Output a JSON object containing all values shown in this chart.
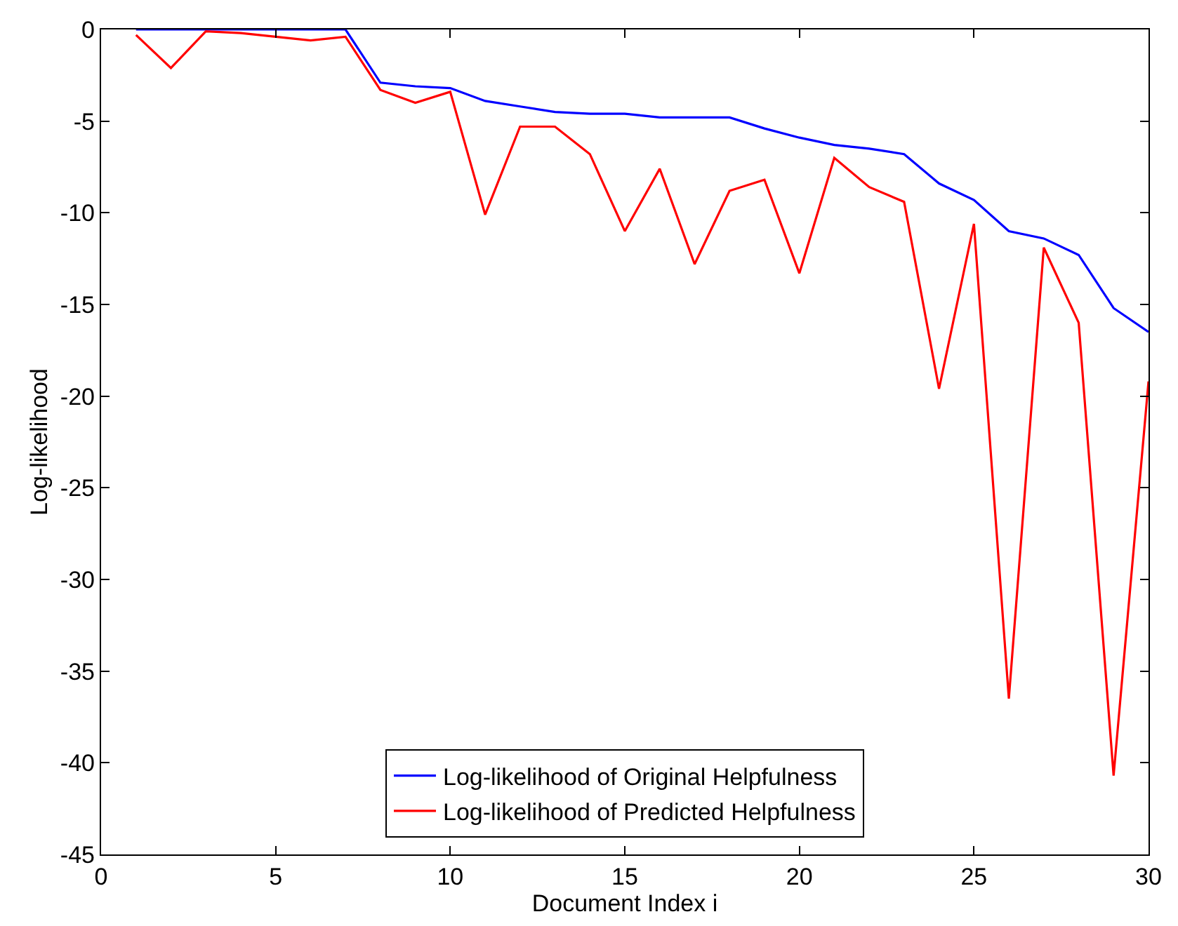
{
  "chart_data": {
    "type": "line",
    "xlabel": "Document Index i",
    "ylabel": "Log-likelihood",
    "x": [
      1,
      2,
      3,
      4,
      5,
      6,
      7,
      8,
      9,
      10,
      11,
      12,
      13,
      14,
      15,
      16,
      17,
      18,
      19,
      20,
      21,
      22,
      23,
      24,
      25,
      26,
      27,
      28,
      29,
      30
    ],
    "series": [
      {
        "name": "Log-likelihood of Original Helpfulness",
        "color": "#0000ff",
        "values": [
          0,
          0,
          0,
          0,
          0,
          0,
          0,
          -2.9,
          -3.1,
          -3.2,
          -3.9,
          -4.2,
          -4.5,
          -4.6,
          -4.6,
          -4.8,
          -4.8,
          -4.8,
          -5.4,
          -5.9,
          -6.3,
          -6.5,
          -6.8,
          -8.4,
          -9.3,
          -11.0,
          -11.4,
          -12.3,
          -15.2,
          -16.5
        ]
      },
      {
        "name": "Log-likelihood of Predicted Helpfulness",
        "color": "#ff0000",
        "values": [
          -0.3,
          -2.1,
          -0.1,
          -0.2,
          -0.4,
          -0.6,
          -0.4,
          -3.3,
          -4.0,
          -3.4,
          -10.1,
          -5.3,
          -5.3,
          -6.8,
          -11.0,
          -7.6,
          -12.8,
          -8.8,
          -8.2,
          -13.3,
          -7.0,
          -8.6,
          -9.4,
          -19.6,
          -10.6,
          -36.5,
          -11.9,
          -16.0,
          -40.7,
          -19.2
        ]
      }
    ],
    "xlim": [
      0,
      30
    ],
    "xticks": [
      0,
      5,
      10,
      15,
      20,
      25,
      30
    ],
    "ylim": [
      -45,
      0
    ],
    "yticks": [
      -45,
      -40,
      -35,
      -30,
      -25,
      -20,
      -15,
      -10,
      -5,
      0
    ],
    "legend": "bottom",
    "marker": "none",
    "line_style": "solid"
  }
}
